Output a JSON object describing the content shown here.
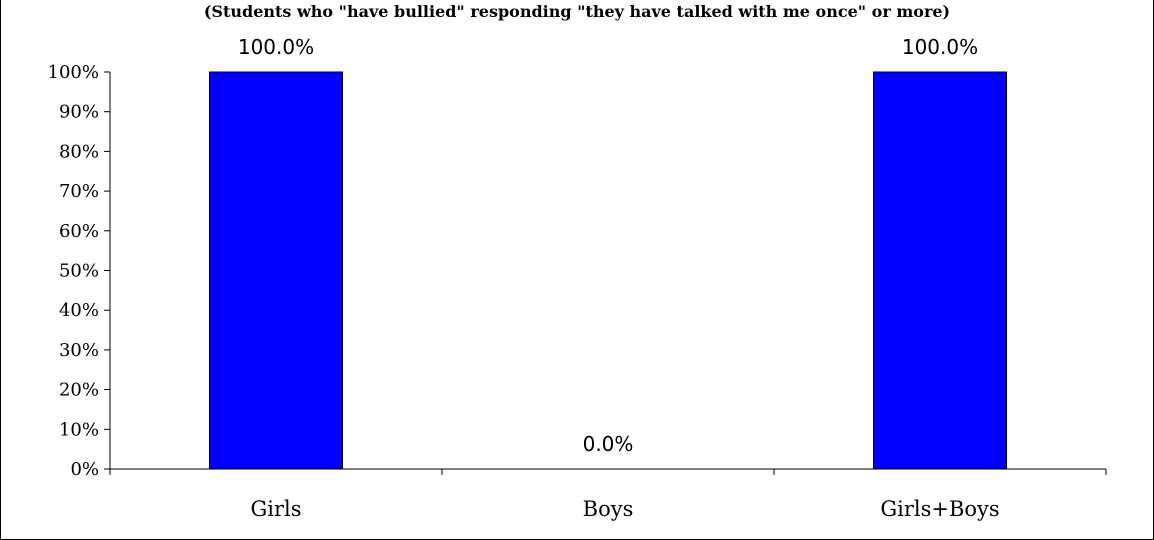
{
  "chart_data": {
    "type": "bar",
    "subtitle": "(Students who \"have bullied\" responding \"they have talked with me once\" or more)",
    "categories": [
      "Girls",
      "Boys",
      "Girls+Boys"
    ],
    "values": [
      100.0,
      0.0,
      100.0
    ],
    "data_labels": [
      "100.0%",
      "0.0%",
      "100.0%"
    ],
    "yticks": [
      "0%",
      "10%",
      "20%",
      "30%",
      "40%",
      "50%",
      "60%",
      "70%",
      "80%",
      "90%",
      "100%"
    ],
    "ylim": [
      0,
      100
    ],
    "grid": false,
    "legend": "none",
    "bar_color": "#0000ff",
    "bar_edge_color": "#000000"
  }
}
